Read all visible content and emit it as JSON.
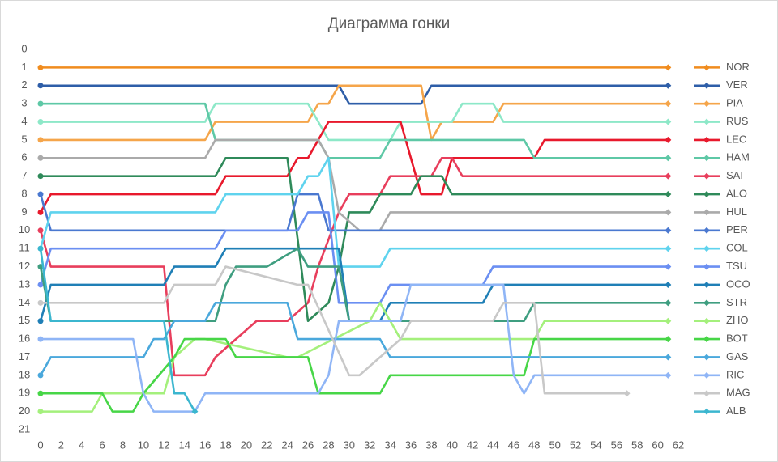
{
  "chart_data": {
    "type": "line",
    "title": "Диаграмма гонки",
    "xlim": [
      0,
      62
    ],
    "xticks": [
      0,
      2,
      4,
      6,
      8,
      10,
      12,
      14,
      16,
      18,
      20,
      22,
      24,
      26,
      28,
      30,
      32,
      34,
      36,
      38,
      40,
      42,
      44,
      46,
      48,
      50,
      52,
      54,
      56,
      58,
      60,
      62
    ],
    "ylim": [
      0,
      21
    ],
    "yticks": [
      0,
      1,
      2,
      3,
      4,
      5,
      6,
      7,
      8,
      9,
      10,
      11,
      12,
      13,
      14,
      15,
      16,
      17,
      18,
      19,
      20,
      21
    ],
    "y_reversed": true,
    "legend": "right",
    "series": [
      {
        "name": "NOR",
        "color": "#f08c1e",
        "x": [
          0,
          61
        ],
        "values": [
          1,
          1
        ]
      },
      {
        "name": "VER",
        "color": "#2e5ea8",
        "x": [
          0,
          29,
          30,
          37,
          38,
          61
        ],
        "values": [
          2,
          2,
          3,
          3,
          2,
          2
        ]
      },
      {
        "name": "PIA",
        "color": "#f5a54a",
        "x": [
          0,
          16,
          17,
          26,
          27,
          28,
          29,
          37,
          38,
          39,
          44,
          45,
          61
        ],
        "values": [
          5,
          5,
          4,
          4,
          3,
          3,
          2,
          2,
          5,
          4,
          4,
          3,
          3
        ]
      },
      {
        "name": "RUS",
        "color": "#8de8c8",
        "x": [
          0,
          16,
          17,
          26,
          27,
          28,
          29,
          34,
          35,
          40,
          41,
          44,
          45,
          61
        ],
        "values": [
          4,
          4,
          3,
          3,
          4,
          5,
          5,
          5,
          4,
          4,
          3,
          3,
          4,
          4
        ]
      },
      {
        "name": "LEC",
        "color": "#e8192c",
        "x": [
          0,
          1,
          17,
          18,
          24,
          25,
          26,
          27,
          28,
          35,
          37,
          39,
          40,
          48,
          49,
          61
        ],
        "values": [
          9,
          8,
          8,
          7,
          7,
          6,
          6,
          5,
          4,
          4,
          8,
          8,
          6,
          6,
          5,
          5
        ]
      },
      {
        "name": "HAM",
        "color": "#5ec8a6",
        "x": [
          0,
          16,
          17,
          27,
          28,
          33,
          34,
          47,
          48,
          61
        ],
        "values": [
          3,
          3,
          5,
          5,
          6,
          6,
          5,
          5,
          6,
          6
        ]
      },
      {
        "name": "SAI",
        "color": "#e83e5c",
        "x": [
          0,
          1,
          12,
          13,
          16,
          17,
          19,
          21,
          24,
          26,
          27,
          29,
          30,
          33,
          34,
          38,
          39,
          40,
          41,
          61
        ],
        "values": [
          10,
          12,
          12,
          18,
          18,
          17,
          16,
          15,
          15,
          14,
          12,
          9,
          8,
          8,
          7,
          7,
          6,
          6,
          7,
          7
        ]
      },
      {
        "name": "ALO",
        "color": "#2f8a5a",
        "x": [
          0,
          17,
          18,
          24,
          26,
          28,
          29,
          30,
          32,
          33,
          36,
          37,
          39,
          40,
          61
        ],
        "values": [
          7,
          7,
          6,
          6,
          15,
          14,
          12,
          9,
          9,
          8,
          8,
          7,
          7,
          8,
          8
        ]
      },
      {
        "name": "HUL",
        "color": "#aaaaaa",
        "x": [
          0,
          16,
          17,
          27,
          28,
          29,
          31,
          33,
          34,
          61
        ],
        "values": [
          6,
          6,
          5,
          5,
          6,
          9,
          10,
          10,
          9,
          9
        ]
      },
      {
        "name": "PER",
        "color": "#4a78d0",
        "x": [
          0,
          1,
          24,
          25,
          27,
          28,
          29,
          61
        ],
        "values": [
          8,
          10,
          10,
          8,
          8,
          10,
          10,
          10
        ]
      },
      {
        "name": "COL",
        "color": "#5fd3ee",
        "x": [
          0,
          1,
          17,
          18,
          25,
          26,
          27,
          28,
          29,
          33,
          34,
          61
        ],
        "values": [
          11,
          9,
          9,
          8,
          8,
          7,
          7,
          6,
          12,
          12,
          11,
          11
        ]
      },
      {
        "name": "TSU",
        "color": "#6b8ff2",
        "x": [
          0,
          1,
          17,
          18,
          25,
          26,
          28,
          29,
          33,
          34,
          35,
          43,
          44,
          61
        ],
        "values": [
          13,
          11,
          11,
          10,
          10,
          9,
          9,
          14,
          14,
          13,
          13,
          13,
          12,
          12
        ]
      },
      {
        "name": "OCO",
        "color": "#1f7fb6",
        "x": [
          0,
          1,
          12,
          13,
          17,
          18,
          29,
          30,
          33,
          34,
          43,
          44,
          61
        ],
        "values": [
          15,
          13,
          13,
          12,
          12,
          11,
          11,
          15,
          15,
          14,
          14,
          13,
          13
        ]
      },
      {
        "name": "STR",
        "color": "#3f9e80",
        "x": [
          0,
          1,
          17,
          18,
          19,
          22,
          25,
          26,
          29,
          30,
          46,
          47,
          48,
          61
        ],
        "values": [
          12,
          15,
          15,
          13,
          12,
          12,
          11,
          12,
          12,
          15,
          15,
          15,
          14,
          14
        ]
      },
      {
        "name": "ZHO",
        "color": "#a4f07c",
        "x": [
          0,
          5,
          6,
          12,
          13,
          15,
          16,
          24,
          25,
          32,
          33,
          35,
          36,
          48,
          49,
          61
        ],
        "values": [
          20,
          20,
          19,
          19,
          17,
          16,
          16,
          17,
          17,
          15,
          14,
          16,
          16,
          16,
          15,
          15
        ]
      },
      {
        "name": "BOT",
        "color": "#47d647",
        "x": [
          0,
          6,
          7,
          9,
          10,
          13,
          14,
          18,
          19,
          26,
          27,
          33,
          34,
          47,
          48,
          61
        ],
        "values": [
          19,
          19,
          20,
          20,
          19,
          17,
          16,
          16,
          17,
          17,
          19,
          19,
          18,
          18,
          16,
          16
        ]
      },
      {
        "name": "GAS",
        "color": "#4aa8dc",
        "x": [
          0,
          1,
          10,
          11,
          12,
          13,
          16,
          17,
          24,
          25,
          33,
          34,
          47,
          48,
          61
        ],
        "values": [
          18,
          17,
          17,
          16,
          16,
          15,
          15,
          14,
          14,
          16,
          16,
          17,
          17,
          17,
          17
        ]
      },
      {
        "name": "RIC",
        "color": "#8fb5f6",
        "x": [
          0,
          9,
          10,
          11,
          15,
          16,
          27,
          28,
          29,
          35,
          36,
          45,
          46,
          47,
          48,
          58,
          61
        ],
        "values": [
          16,
          16,
          19,
          20,
          20,
          19,
          19,
          18,
          15,
          15,
          13,
          13,
          18,
          19,
          18,
          18,
          18
        ]
      },
      {
        "name": "MAG",
        "color": "#c8c8c8",
        "x": [
          0,
          12,
          13,
          17,
          18,
          25,
          26,
          30,
          31,
          35,
          36,
          44,
          45,
          48,
          49,
          57
        ],
        "values": [
          14,
          14,
          13,
          13,
          12,
          13,
          13,
          18,
          18,
          16,
          15,
          15,
          14,
          14,
          19,
          19
        ]
      },
      {
        "name": "ALB",
        "color": "#3bb6cf",
        "x": [
          0,
          1,
          12,
          13,
          14,
          15
        ],
        "values": [
          11,
          15,
          15,
          19,
          19,
          20
        ]
      }
    ]
  }
}
